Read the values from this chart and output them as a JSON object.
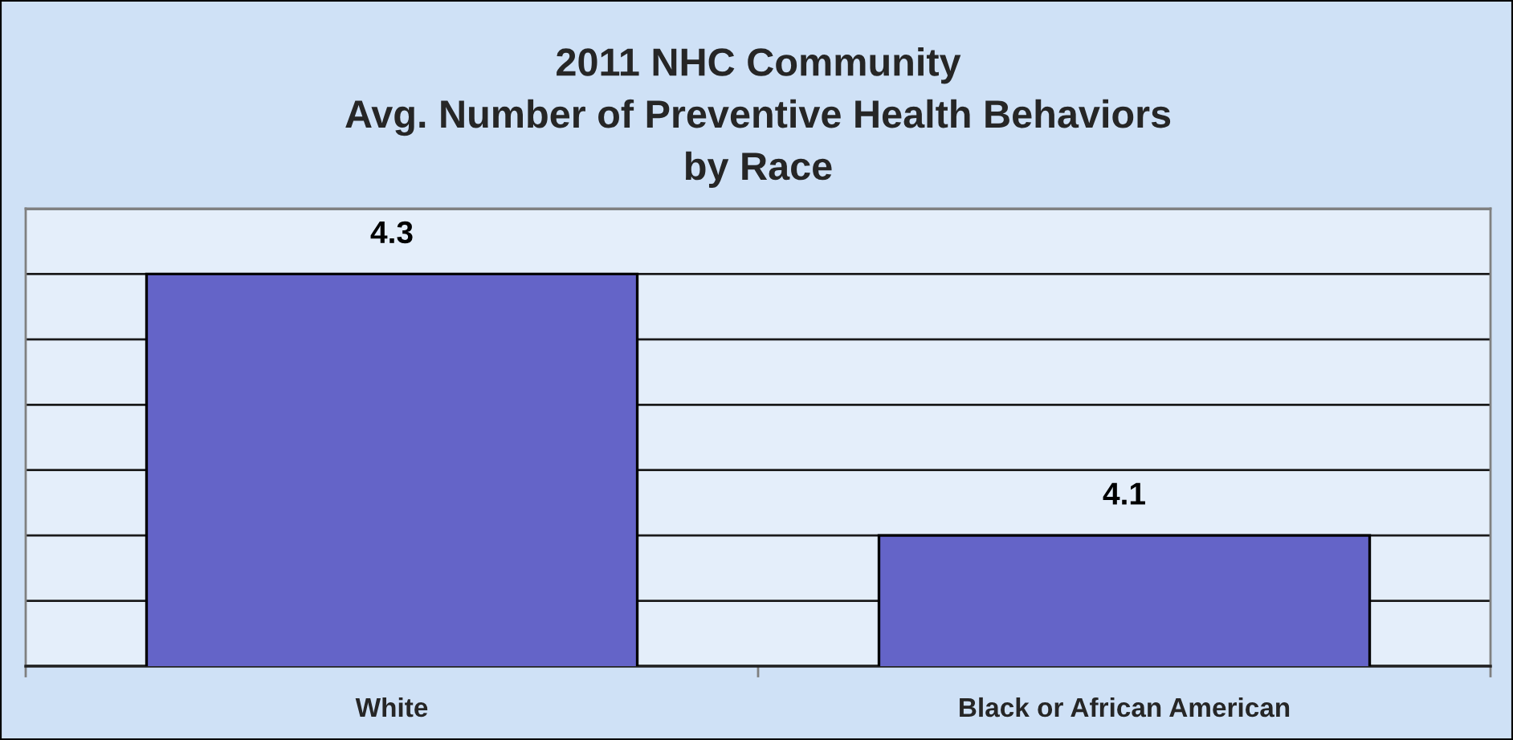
{
  "chart_data": {
    "type": "bar",
    "title": "2011 NHC Community\nAvg. Number of Preventive Health Behaviors\nby Race",
    "categories": [
      "White",
      "Black or African American"
    ],
    "values": [
      4.3,
      4.1
    ],
    "color": "#6464c8",
    "ylim": [
      4.0,
      4.35
    ],
    "yticks": [
      {
        "value": 4.0,
        "label": null
      },
      {
        "value": 4.05,
        "label": null
      },
      {
        "value": 4.1,
        "label": null
      },
      {
        "value": 4.15,
        "label": null
      },
      {
        "value": 4.2,
        "label": null
      },
      {
        "value": 4.25,
        "label": null
      },
      {
        "value": 4.3,
        "label": null
      },
      {
        "value": 4.35,
        "label": null
      }
    ],
    "grid": "y",
    "tick_labels": "x",
    "data_labels": true
  }
}
